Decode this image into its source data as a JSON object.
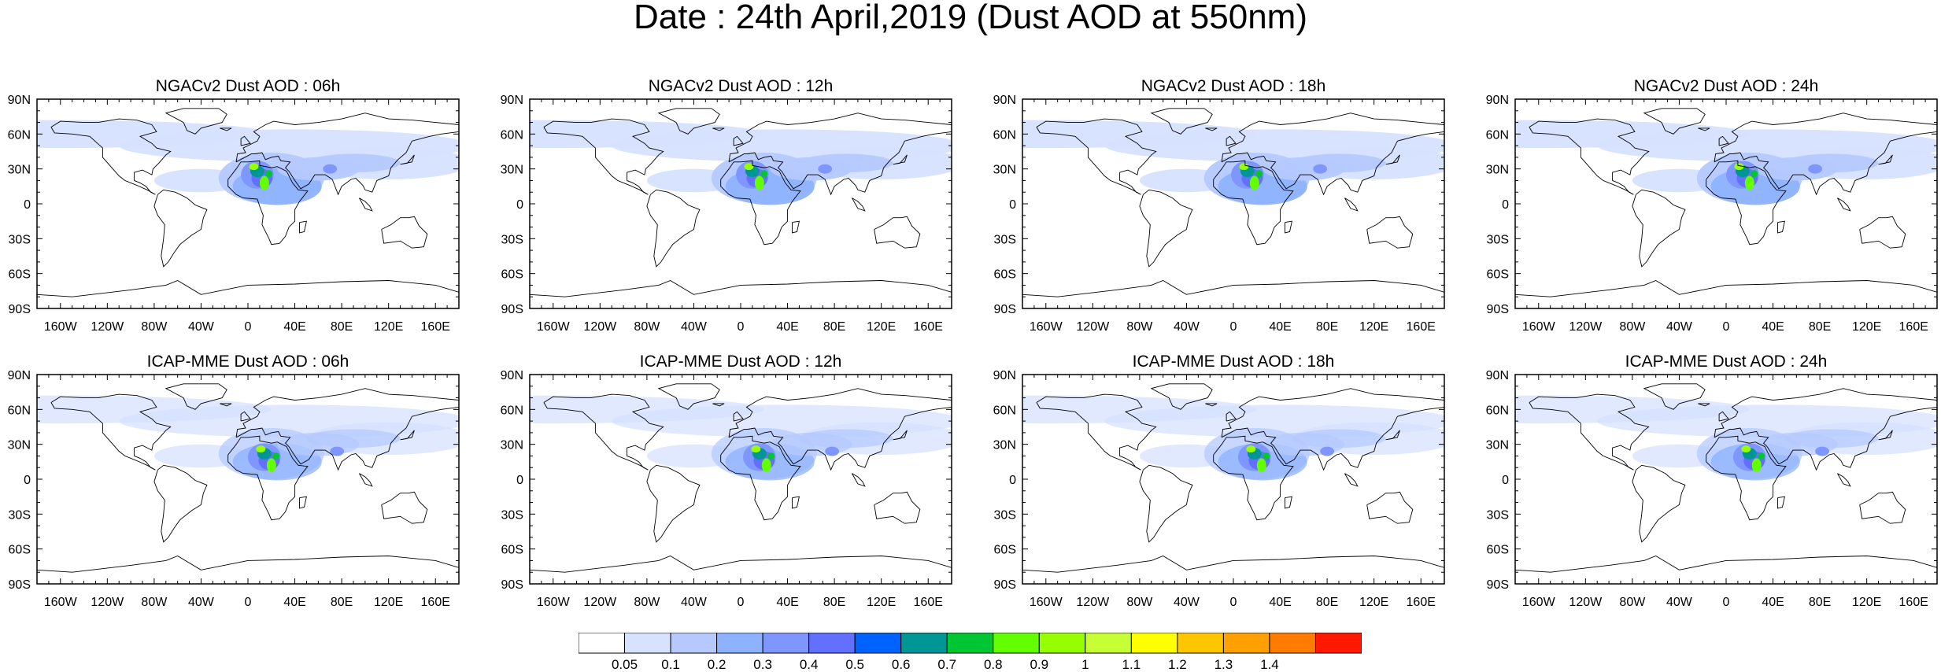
{
  "figure": {
    "title": "Date : 24th April,2019 (Dust AOD at 550nm)"
  },
  "panels": [
    {
      "title": "NGACv2 Dust AOD : 06h",
      "model": "NGACv2",
      "lead": "06h"
    },
    {
      "title": "NGACv2 Dust AOD : 12h",
      "model": "NGACv2",
      "lead": "12h"
    },
    {
      "title": "NGACv2 Dust AOD : 18h",
      "model": "NGACv2",
      "lead": "18h"
    },
    {
      "title": "NGACv2 Dust AOD : 24h",
      "model": "NGACv2",
      "lead": "24h"
    },
    {
      "title": "ICAP-MME Dust AOD : 06h",
      "model": "ICAP-MME",
      "lead": "06h"
    },
    {
      "title": "ICAP-MME Dust AOD : 12h",
      "model": "ICAP-MME",
      "lead": "12h"
    },
    {
      "title": "ICAP-MME Dust AOD : 18h",
      "model": "ICAP-MME",
      "lead": "18h"
    },
    {
      "title": "ICAP-MME Dust AOD : 24h",
      "model": "ICAP-MME",
      "lead": "24h"
    }
  ],
  "axes": {
    "lat_labels": [
      "90N",
      "60N",
      "30N",
      "0",
      "30S",
      "60S",
      "90S"
    ],
    "lon_labels": [
      "160W",
      "120W",
      "80W",
      "40W",
      "0",
      "40E",
      "80E",
      "120E",
      "160E"
    ],
    "lon_values": [
      -160,
      -120,
      -80,
      -40,
      0,
      40,
      80,
      120,
      160
    ],
    "lat_values": [
      90,
      60,
      30,
      0,
      -30,
      -60,
      -90
    ]
  },
  "colorbar": {
    "labels": [
      "0.05",
      "0.1",
      "0.2",
      "0.3",
      "0.4",
      "0.5",
      "0.6",
      "0.7",
      "0.8",
      "0.9",
      "1",
      "1.1",
      "1.2",
      "1.3",
      "1.4"
    ],
    "colors": [
      "#ffffff",
      "#d6e2ff",
      "#b5c9ff",
      "#8eb2ff",
      "#7f96ff",
      "#6370ff",
      "#0063ff",
      "#009696",
      "#00c633",
      "#63ff00",
      "#96ff00",
      "#c6ff33",
      "#ffff00",
      "#ffc600",
      "#ffa000",
      "#ff7c00",
      "#ff1900"
    ]
  }
}
